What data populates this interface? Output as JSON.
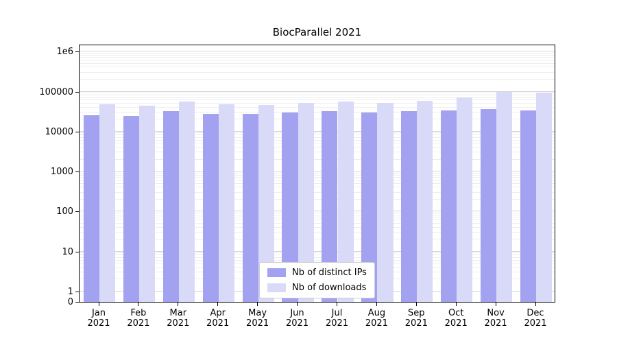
{
  "chart_data": {
    "type": "bar",
    "title": "BiocParallel 2021",
    "y_scale": "log",
    "ylim": [
      0,
      1000000
    ],
    "grid": "horizontal-major-and-minor",
    "legend_position": "bottom-center-inside",
    "x_year": "2021",
    "categories": [
      "Jan",
      "Feb",
      "Mar",
      "Apr",
      "May",
      "Jun",
      "Jul",
      "Aug",
      "Sep",
      "Oct",
      "Nov",
      "Dec"
    ],
    "y_ticks": [
      {
        "label": "0",
        "value": 0
      },
      {
        "label": "1",
        "value": 1
      },
      {
        "label": "10",
        "value": 10
      },
      {
        "label": "100",
        "value": 100
      },
      {
        "label": "1000",
        "value": 1000
      },
      {
        "label": "10000",
        "value": 10000
      },
      {
        "label": "100000",
        "value": 100000
      },
      {
        "label": "1e6",
        "value": 1000000
      }
    ],
    "series": [
      {
        "name": "Nb of distinct IPs",
        "color": "#a2a2f0",
        "values": [
          26000,
          25000,
          32000,
          28000,
          28000,
          30000,
          32000,
          30000,
          33000,
          34000,
          37000,
          34000
        ]
      },
      {
        "name": "Nb of downloads",
        "color": "#d9d9f8",
        "values": [
          48000,
          44000,
          56000,
          48000,
          46000,
          52000,
          56000,
          53000,
          58000,
          71000,
          100000,
          93000
        ]
      }
    ]
  }
}
